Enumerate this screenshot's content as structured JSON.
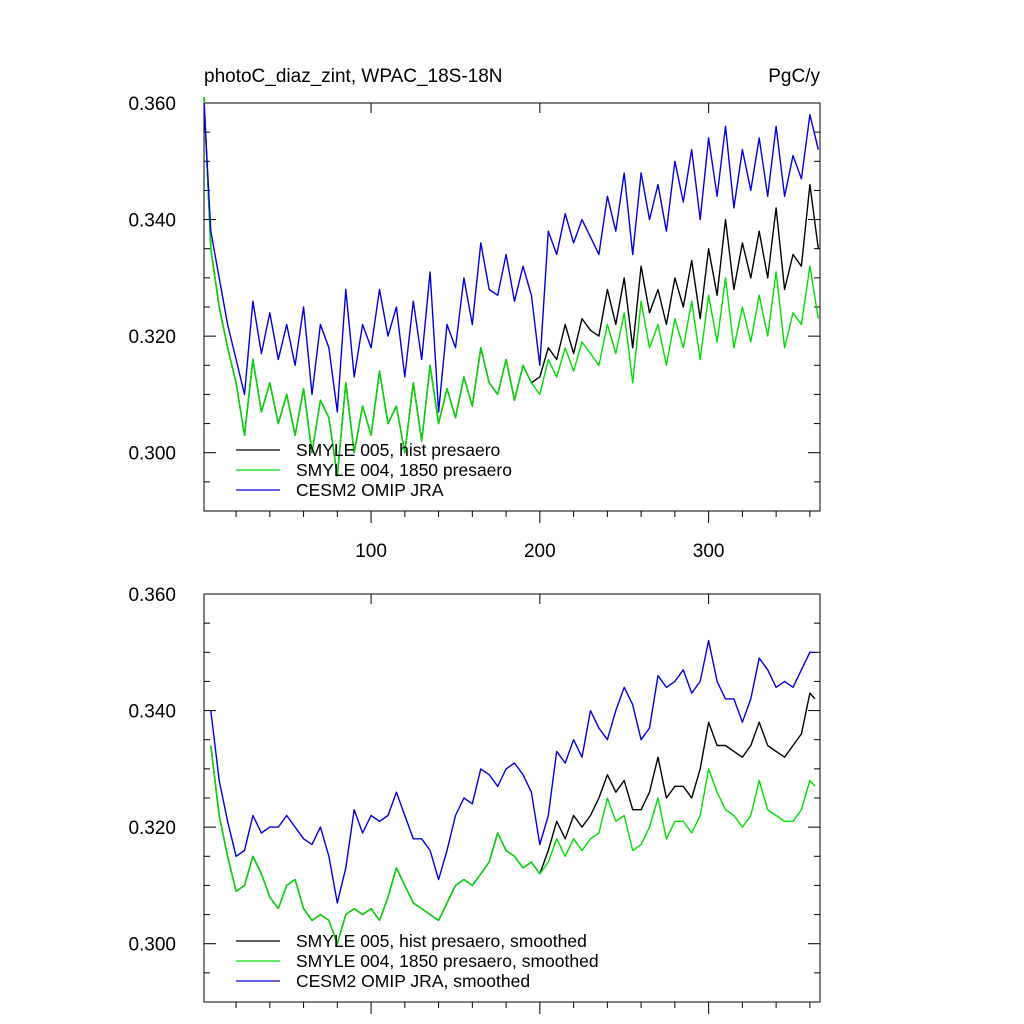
{
  "chart_data": [
    {
      "type": "line",
      "title_left": "photoC_diaz_zint, WPAC_18S-18N",
      "title_right": "PgC/y",
      "xlabel": "",
      "ylabel": "",
      "xlim": [
        1,
        366
      ],
      "ylim": [
        0.29,
        0.36
      ],
      "x_ticks": [
        100,
        200,
        300
      ],
      "x_tick_labels": [
        "100",
        "200",
        "300"
      ],
      "y_ticks": [
        0.3,
        0.32,
        0.34,
        0.36
      ],
      "y_tick_labels": [
        "0.300",
        "0.320",
        "0.340",
        "0.360"
      ],
      "legend_position": "bottom-left",
      "series": [
        {
          "name": "SMYLE 005, hist presaero",
          "color": "#000000",
          "x": [
            1,
            5,
            10,
            15,
            20,
            25,
            30,
            35,
            40,
            45,
            50,
            55,
            60,
            65,
            70,
            75,
            80,
            85,
            90,
            95,
            100,
            105,
            110,
            115,
            120,
            125,
            130,
            135,
            140,
            145,
            150,
            155,
            160,
            165,
            170,
            175,
            180,
            185,
            190,
            195,
            200,
            205,
            210,
            215,
            220,
            225,
            230,
            235,
            240,
            245,
            250,
            255,
            260,
            265,
            270,
            275,
            280,
            285,
            290,
            295,
            300,
            305,
            310,
            315,
            320,
            325,
            330,
            335,
            340,
            345,
            350,
            355,
            360,
            365
          ],
          "values": [
            0.361,
            0.335,
            0.325,
            0.318,
            0.312,
            0.303,
            0.316,
            0.307,
            0.312,
            0.305,
            0.31,
            0.303,
            0.311,
            0.3,
            0.309,
            0.306,
            0.296,
            0.312,
            0.3,
            0.308,
            0.303,
            0.314,
            0.305,
            0.308,
            0.3,
            0.312,
            0.302,
            0.315,
            0.305,
            0.311,
            0.306,
            0.313,
            0.308,
            0.318,
            0.312,
            0.31,
            0.316,
            0.309,
            0.315,
            0.312,
            0.313,
            0.318,
            0.316,
            0.322,
            0.317,
            0.323,
            0.321,
            0.32,
            0.328,
            0.322,
            0.33,
            0.318,
            0.332,
            0.324,
            0.328,
            0.322,
            0.33,
            0.325,
            0.333,
            0.323,
            0.335,
            0.327,
            0.34,
            0.328,
            0.336,
            0.33,
            0.338,
            0.33,
            0.342,
            0.328,
            0.334,
            0.332,
            0.346,
            0.335
          ]
        },
        {
          "name": "SMYLE 004, 1850 presaero",
          "color": "#00dd00",
          "x": [
            1,
            5,
            10,
            15,
            20,
            25,
            30,
            35,
            40,
            45,
            50,
            55,
            60,
            65,
            70,
            75,
            80,
            85,
            90,
            95,
            100,
            105,
            110,
            115,
            120,
            125,
            130,
            135,
            140,
            145,
            150,
            155,
            160,
            165,
            170,
            175,
            180,
            185,
            190,
            195,
            200,
            205,
            210,
            215,
            220,
            225,
            230,
            235,
            240,
            245,
            250,
            255,
            260,
            265,
            270,
            275,
            280,
            285,
            290,
            295,
            300,
            305,
            310,
            315,
            320,
            325,
            330,
            335,
            340,
            345,
            350,
            355,
            360,
            365
          ],
          "values": [
            0.361,
            0.335,
            0.325,
            0.318,
            0.312,
            0.303,
            0.316,
            0.307,
            0.312,
            0.305,
            0.31,
            0.303,
            0.311,
            0.3,
            0.309,
            0.306,
            0.296,
            0.312,
            0.3,
            0.308,
            0.303,
            0.314,
            0.305,
            0.308,
            0.3,
            0.312,
            0.302,
            0.315,
            0.305,
            0.311,
            0.306,
            0.313,
            0.308,
            0.318,
            0.312,
            0.31,
            0.316,
            0.309,
            0.315,
            0.312,
            0.31,
            0.316,
            0.313,
            0.318,
            0.314,
            0.319,
            0.317,
            0.315,
            0.322,
            0.317,
            0.324,
            0.312,
            0.326,
            0.318,
            0.322,
            0.315,
            0.323,
            0.318,
            0.326,
            0.316,
            0.327,
            0.319,
            0.33,
            0.318,
            0.325,
            0.319,
            0.327,
            0.32,
            0.331,
            0.318,
            0.324,
            0.322,
            0.332,
            0.323
          ]
        },
        {
          "name": "CESM2 OMIP JRA",
          "color": "#0000dd",
          "x": [
            1,
            5,
            10,
            15,
            20,
            25,
            30,
            35,
            40,
            45,
            50,
            55,
            60,
            65,
            70,
            75,
            80,
            85,
            90,
            95,
            100,
            105,
            110,
            115,
            120,
            125,
            130,
            135,
            140,
            145,
            150,
            155,
            160,
            165,
            170,
            175,
            180,
            185,
            190,
            195,
            200,
            205,
            210,
            215,
            220,
            225,
            230,
            235,
            240,
            245,
            250,
            255,
            260,
            265,
            270,
            275,
            280,
            285,
            290,
            295,
            300,
            305,
            310,
            315,
            320,
            325,
            330,
            335,
            340,
            345,
            350,
            355,
            360,
            365
          ],
          "values": [
            0.36,
            0.338,
            0.33,
            0.322,
            0.316,
            0.31,
            0.326,
            0.317,
            0.324,
            0.316,
            0.322,
            0.315,
            0.325,
            0.31,
            0.322,
            0.318,
            0.307,
            0.328,
            0.313,
            0.322,
            0.318,
            0.328,
            0.32,
            0.325,
            0.313,
            0.326,
            0.316,
            0.331,
            0.307,
            0.322,
            0.318,
            0.33,
            0.322,
            0.336,
            0.328,
            0.327,
            0.334,
            0.326,
            0.332,
            0.327,
            0.315,
            0.338,
            0.334,
            0.341,
            0.336,
            0.34,
            0.337,
            0.334,
            0.344,
            0.338,
            0.348,
            0.334,
            0.348,
            0.34,
            0.346,
            0.338,
            0.35,
            0.343,
            0.352,
            0.34,
            0.354,
            0.344,
            0.356,
            0.342,
            0.352,
            0.345,
            0.354,
            0.344,
            0.356,
            0.344,
            0.351,
            0.347,
            0.358,
            0.352
          ]
        }
      ]
    },
    {
      "type": "line",
      "title_left": "",
      "title_right": "",
      "xlabel": "",
      "ylabel": "",
      "xlim": [
        1,
        366
      ],
      "ylim": [
        0.29,
        0.36
      ],
      "x_ticks": [
        100,
        200,
        300
      ],
      "x_tick_labels": [],
      "y_ticks": [
        0.3,
        0.32,
        0.34,
        0.36
      ],
      "y_tick_labels": [
        "0.300",
        "0.320",
        "0.340",
        "0.360"
      ],
      "legend_position": "bottom-left",
      "series": [
        {
          "name": "SMYLE 005, hist presaero, smoothed",
          "color": "#000000",
          "x": [
            5,
            10,
            15,
            20,
            25,
            30,
            35,
            40,
            45,
            50,
            55,
            60,
            65,
            70,
            75,
            80,
            85,
            90,
            95,
            100,
            105,
            110,
            115,
            120,
            125,
            130,
            135,
            140,
            145,
            150,
            155,
            160,
            165,
            170,
            175,
            180,
            185,
            190,
            195,
            200,
            205,
            210,
            215,
            220,
            225,
            230,
            235,
            240,
            245,
            250,
            255,
            260,
            265,
            270,
            275,
            280,
            285,
            290,
            295,
            300,
            305,
            310,
            315,
            320,
            325,
            330,
            335,
            340,
            345,
            350,
            355,
            360,
            363
          ],
          "values": [
            0.334,
            0.322,
            0.315,
            0.309,
            0.31,
            0.315,
            0.312,
            0.308,
            0.306,
            0.31,
            0.311,
            0.306,
            0.304,
            0.305,
            0.304,
            0.3,
            0.305,
            0.306,
            0.305,
            0.306,
            0.304,
            0.308,
            0.313,
            0.31,
            0.307,
            0.306,
            0.305,
            0.304,
            0.307,
            0.31,
            0.311,
            0.31,
            0.312,
            0.314,
            0.319,
            0.316,
            0.315,
            0.313,
            0.314,
            0.312,
            0.316,
            0.321,
            0.318,
            0.322,
            0.32,
            0.322,
            0.325,
            0.329,
            0.326,
            0.328,
            0.323,
            0.323,
            0.326,
            0.332,
            0.325,
            0.327,
            0.327,
            0.325,
            0.33,
            0.338,
            0.334,
            0.334,
            0.333,
            0.332,
            0.334,
            0.338,
            0.334,
            0.333,
            0.332,
            0.334,
            0.336,
            0.343,
            0.342
          ]
        },
        {
          "name": "SMYLE 004, 1850 presaero, smoothed",
          "color": "#00dd00",
          "x": [
            5,
            10,
            15,
            20,
            25,
            30,
            35,
            40,
            45,
            50,
            55,
            60,
            65,
            70,
            75,
            80,
            85,
            90,
            95,
            100,
            105,
            110,
            115,
            120,
            125,
            130,
            135,
            140,
            145,
            150,
            155,
            160,
            165,
            170,
            175,
            180,
            185,
            190,
            195,
            200,
            205,
            210,
            215,
            220,
            225,
            230,
            235,
            240,
            245,
            250,
            255,
            260,
            265,
            270,
            275,
            280,
            285,
            290,
            295,
            300,
            305,
            310,
            315,
            320,
            325,
            330,
            335,
            340,
            345,
            350,
            355,
            360,
            363
          ],
          "values": [
            0.334,
            0.322,
            0.315,
            0.309,
            0.31,
            0.315,
            0.312,
            0.308,
            0.306,
            0.31,
            0.311,
            0.306,
            0.304,
            0.305,
            0.304,
            0.3,
            0.305,
            0.306,
            0.305,
            0.306,
            0.304,
            0.308,
            0.313,
            0.31,
            0.307,
            0.306,
            0.305,
            0.304,
            0.307,
            0.31,
            0.311,
            0.31,
            0.312,
            0.314,
            0.319,
            0.316,
            0.315,
            0.313,
            0.314,
            0.312,
            0.314,
            0.318,
            0.315,
            0.318,
            0.316,
            0.318,
            0.319,
            0.325,
            0.321,
            0.322,
            0.316,
            0.317,
            0.32,
            0.325,
            0.318,
            0.321,
            0.321,
            0.319,
            0.322,
            0.33,
            0.326,
            0.323,
            0.322,
            0.32,
            0.322,
            0.328,
            0.323,
            0.322,
            0.321,
            0.321,
            0.323,
            0.328,
            0.327
          ]
        },
        {
          "name": "CESM2 OMIP JRA, smoothed",
          "color": "#0000dd",
          "x": [
            5,
            10,
            15,
            20,
            25,
            30,
            35,
            40,
            45,
            50,
            55,
            60,
            65,
            70,
            75,
            80,
            85,
            90,
            95,
            100,
            105,
            110,
            115,
            120,
            125,
            130,
            135,
            140,
            145,
            150,
            155,
            160,
            165,
            170,
            175,
            180,
            185,
            190,
            195,
            200,
            205,
            210,
            215,
            220,
            225,
            230,
            235,
            240,
            245,
            250,
            255,
            260,
            265,
            270,
            275,
            280,
            285,
            290,
            295,
            300,
            305,
            310,
            315,
            320,
            325,
            330,
            335,
            340,
            345,
            350,
            355,
            360,
            363
          ],
          "values": [
            0.34,
            0.328,
            0.321,
            0.315,
            0.316,
            0.322,
            0.319,
            0.32,
            0.32,
            0.322,
            0.32,
            0.318,
            0.317,
            0.32,
            0.315,
            0.307,
            0.313,
            0.323,
            0.319,
            0.322,
            0.321,
            0.322,
            0.326,
            0.322,
            0.318,
            0.318,
            0.316,
            0.311,
            0.316,
            0.322,
            0.325,
            0.324,
            0.33,
            0.329,
            0.327,
            0.33,
            0.331,
            0.329,
            0.326,
            0.317,
            0.322,
            0.333,
            0.331,
            0.335,
            0.332,
            0.34,
            0.337,
            0.335,
            0.34,
            0.344,
            0.341,
            0.335,
            0.337,
            0.346,
            0.344,
            0.345,
            0.347,
            0.343,
            0.345,
            0.352,
            0.345,
            0.342,
            0.342,
            0.338,
            0.342,
            0.349,
            0.347,
            0.344,
            0.345,
            0.344,
            0.347,
            0.35,
            0.35
          ]
        }
      ]
    }
  ]
}
